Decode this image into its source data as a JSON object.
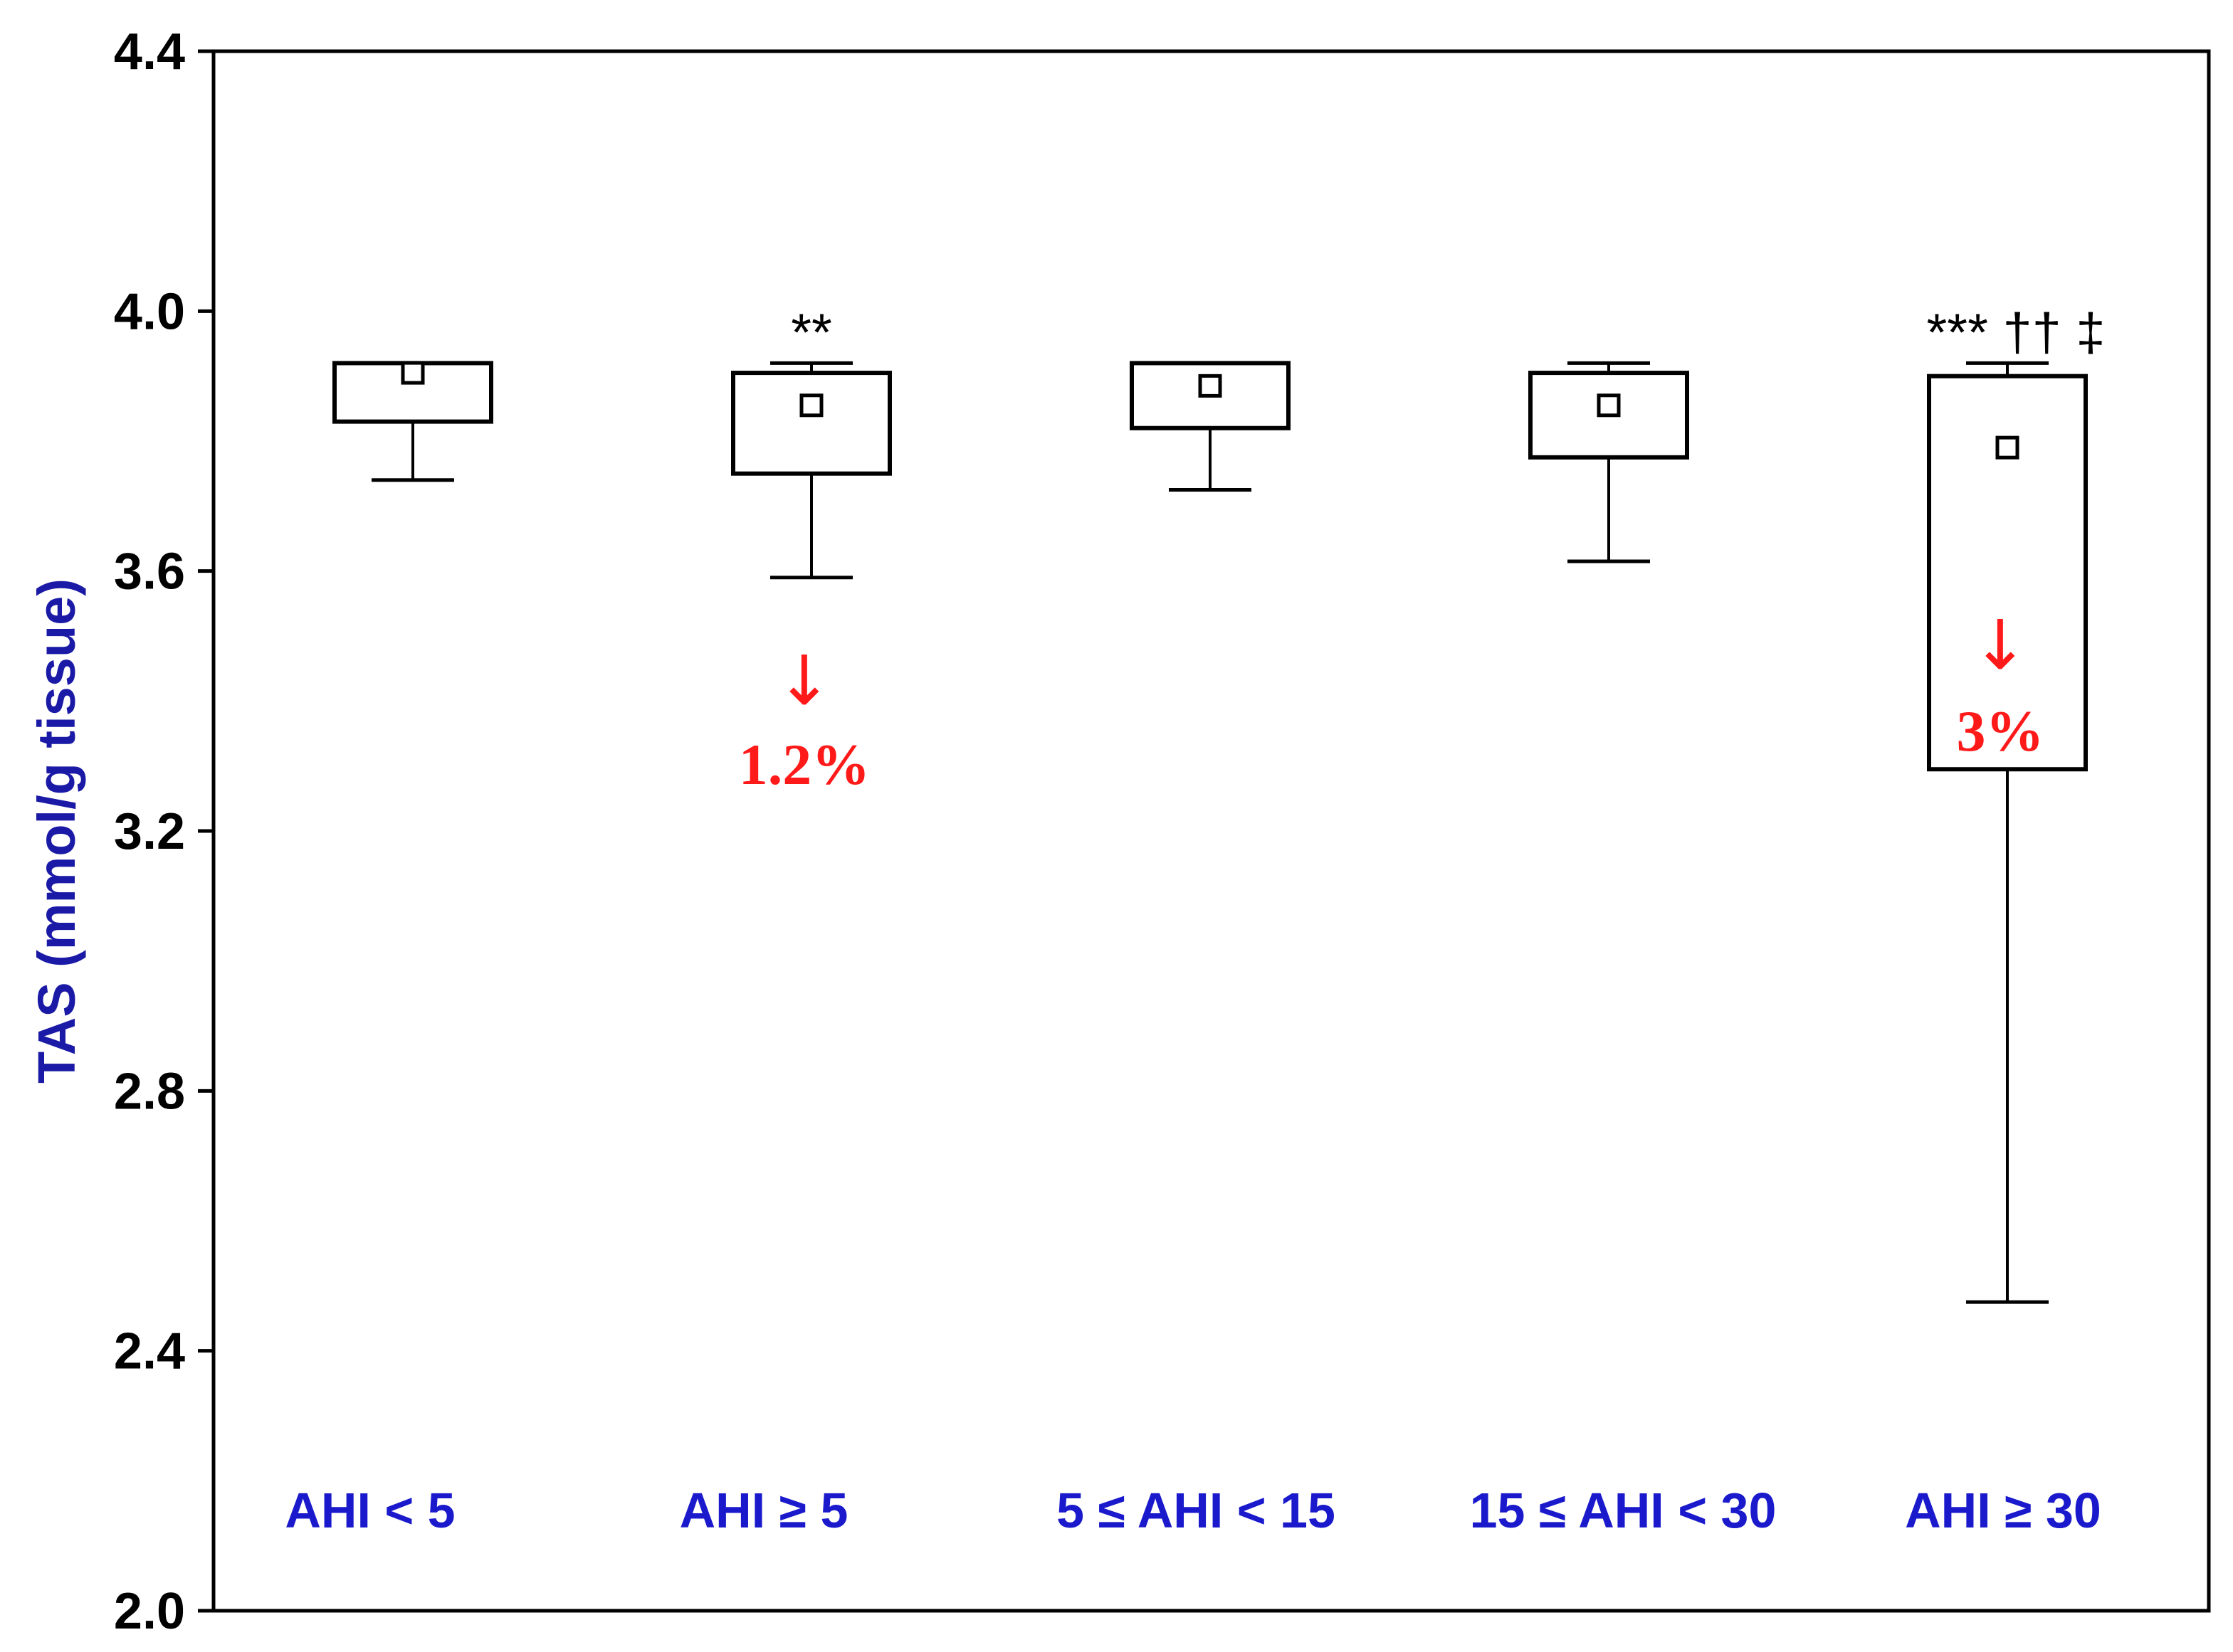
{
  "chart_data": {
    "type": "box",
    "ylabel": "TAS (mmol/g tissue)",
    "ylim": [
      2.0,
      4.4
    ],
    "yticks": [
      "2.0",
      "2.4",
      "2.8",
      "3.2",
      "3.6",
      "4.0",
      "4.4"
    ],
    "grid": false,
    "categories": [
      "AHI < 5",
      "AHI ≥ 5",
      "5 ≤ AHI < 15",
      "15 ≤ AHI < 30",
      "AHI ≥ 30"
    ],
    "boxes": [
      {
        "category": "AHI < 5",
        "whisker_low": 3.74,
        "q1": 3.83,
        "q3": 3.92,
        "whisker_high": 3.92,
        "mean": 3.905,
        "significance": "",
        "change": ""
      },
      {
        "category": "AHI ≥ 5",
        "whisker_low": 3.59,
        "q1": 3.75,
        "q3": 3.905,
        "whisker_high": 3.92,
        "mean": 3.855,
        "significance": "**",
        "change": "1.2%"
      },
      {
        "category": "5 ≤ AHI < 15",
        "whisker_low": 3.725,
        "q1": 3.82,
        "q3": 3.92,
        "whisker_high": 3.92,
        "mean": 3.885,
        "significance": "",
        "change": ""
      },
      {
        "category": "15 ≤ AHI < 30",
        "whisker_low": 3.615,
        "q1": 3.775,
        "q3": 3.905,
        "whisker_high": 3.92,
        "mean": 3.855,
        "significance": "",
        "change": ""
      },
      {
        "category": "AHI ≥ 30",
        "whisker_low": 2.475,
        "q1": 3.295,
        "q3": 3.9,
        "whisker_high": 3.92,
        "mean": 3.79,
        "significance": "*** †† ‡",
        "change": "3%"
      }
    ],
    "arrow_symbol": "↓",
    "colors": {
      "axis_title": "#1a1aa6",
      "category_labels": "#1a1acc",
      "change_annotation": "#ff1a1a",
      "box_stroke": "#000000"
    }
  }
}
